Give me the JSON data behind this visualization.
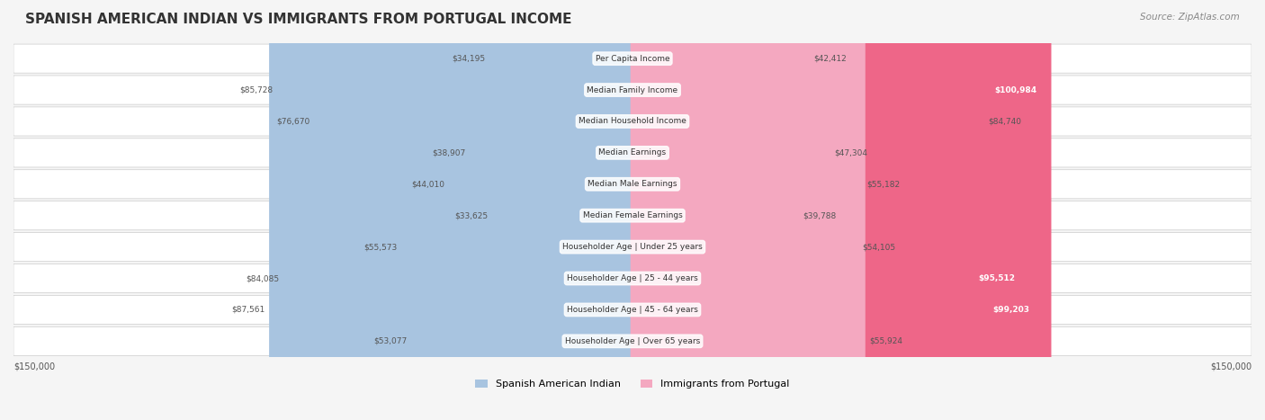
{
  "title": "SPANISH AMERICAN INDIAN VS IMMIGRANTS FROM PORTUGAL INCOME",
  "source": "Source: ZipAtlas.com",
  "categories": [
    "Per Capita Income",
    "Median Family Income",
    "Median Household Income",
    "Median Earnings",
    "Median Male Earnings",
    "Median Female Earnings",
    "Householder Age | Under 25 years",
    "Householder Age | 25 - 44 years",
    "Householder Age | 45 - 64 years",
    "Householder Age | Over 65 years"
  ],
  "left_values": [
    34195,
    85728,
    76670,
    38907,
    44010,
    33625,
    55573,
    84085,
    87561,
    53077
  ],
  "right_values": [
    42412,
    100984,
    84740,
    47304,
    55182,
    39788,
    54105,
    95512,
    99203,
    55924
  ],
  "left_labels": [
    "$34,195",
    "$85,728",
    "$76,670",
    "$38,907",
    "$44,010",
    "$33,625",
    "$55,573",
    "$84,085",
    "$87,561",
    "$53,077"
  ],
  "right_labels": [
    "$42,412",
    "$100,984",
    "$84,740",
    "$47,304",
    "$55,182",
    "$39,788",
    "$54,105",
    "$95,512",
    "$99,203",
    "$55,924"
  ],
  "left_color_light": "#a8c4e0",
  "left_color_dark": "#6699cc",
  "right_color_light": "#f4a8c0",
  "right_color_dark": "#ee6688",
  "max_value": 150000,
  "legend_left": "Spanish American Indian",
  "legend_right": "Immigrants from Portugal",
  "background_color": "#f5f5f5",
  "row_background": "#ffffff",
  "row_background_alt": "#f0f0f0",
  "high_threshold": 90000
}
